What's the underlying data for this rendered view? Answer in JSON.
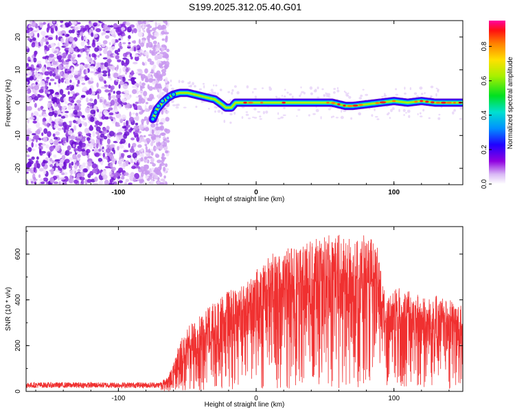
{
  "figure_title": "S199.2025.312.05.40.G01",
  "chart_data": [
    {
      "type": "heatmap",
      "title": "S199.2025.312.05.40.G01",
      "xlabel": "Height of straight line (km)",
      "ylabel": "Frequency (Hz)",
      "xlim": [
        -167,
        150
      ],
      "ylim": [
        -25,
        25
      ],
      "x_ticks": [
        -100,
        0,
        100
      ],
      "x_tick_labels": [
        "-100",
        "0",
        "100"
      ],
      "y_ticks": [
        -20,
        -10,
        0,
        10,
        20
      ],
      "y_tick_labels": [
        "-20",
        "-10",
        "0",
        "10",
        "20"
      ],
      "colorbar": {
        "label": "Normalized spectral amplitude",
        "range": [
          0,
          0.95
        ],
        "ticks": [
          0.0,
          0.2,
          0.4,
          0.6,
          0.8
        ],
        "tick_labels": [
          "0.0",
          "0.2",
          "0.4",
          "0.6",
          "0.8"
        ]
      },
      "noise_region_x": [
        -167,
        -70
      ],
      "ridge_line": {
        "x": [
          -75,
          -72,
          -68,
          -64,
          -60,
          -55,
          -50,
          -45,
          -40,
          -35,
          -30,
          -25,
          -22,
          -18,
          -15,
          -10,
          0,
          20,
          40,
          55,
          60,
          65,
          70,
          80,
          90,
          100,
          110,
          120,
          130,
          140,
          150
        ],
        "y": [
          -5,
          -2,
          0,
          1.5,
          2.5,
          3,
          3,
          2.5,
          2,
          1.5,
          1,
          -0.5,
          -1.5,
          -1.5,
          0,
          0,
          0,
          0,
          0,
          0,
          -0.5,
          -1,
          -1,
          -0.5,
          0,
          0.5,
          0,
          0.5,
          0,
          0,
          0
        ]
      }
    },
    {
      "type": "line",
      "title": "",
      "xlabel": "Height of straight line (km)",
      "ylabel": "SNR (10 * v/v)",
      "xlim": [
        -167,
        150
      ],
      "ylim": [
        0,
        720
      ],
      "x_ticks": [
        -100,
        0,
        100
      ],
      "x_tick_labels": [
        "-100",
        "0",
        "100"
      ],
      "y_ticks": [
        0,
        200,
        400,
        600
      ],
      "y_tick_labels": [
        "0",
        "200",
        "400",
        "600"
      ],
      "series": [
        {
          "name": "SNR",
          "color": "#f03030",
          "envelope_x": [
            -167,
            -70,
            -65,
            -60,
            -55,
            -50,
            -45,
            -40,
            -35,
            -30,
            -25,
            -20,
            -15,
            -10,
            -5,
            0,
            5,
            10,
            20,
            30,
            40,
            50,
            60,
            70,
            80,
            88,
            92,
            95,
            100,
            110,
            120,
            130,
            140,
            150
          ],
          "envelope_low": [
            15,
            15,
            25,
            40,
            60,
            70,
            80,
            100,
            120,
            140,
            160,
            180,
            200,
            210,
            220,
            250,
            250,
            250,
            260,
            270,
            280,
            280,
            280,
            270,
            260,
            250,
            240,
            230,
            200,
            180,
            180,
            170,
            170,
            170
          ],
          "envelope_high": [
            40,
            40,
            60,
            120,
            230,
            280,
            320,
            350,
            370,
            390,
            420,
            440,
            450,
            480,
            510,
            530,
            560,
            600,
            620,
            640,
            660,
            680,
            690,
            690,
            680,
            650,
            480,
            400,
            460,
            440,
            430,
            420,
            400,
            390
          ]
        }
      ]
    }
  ]
}
